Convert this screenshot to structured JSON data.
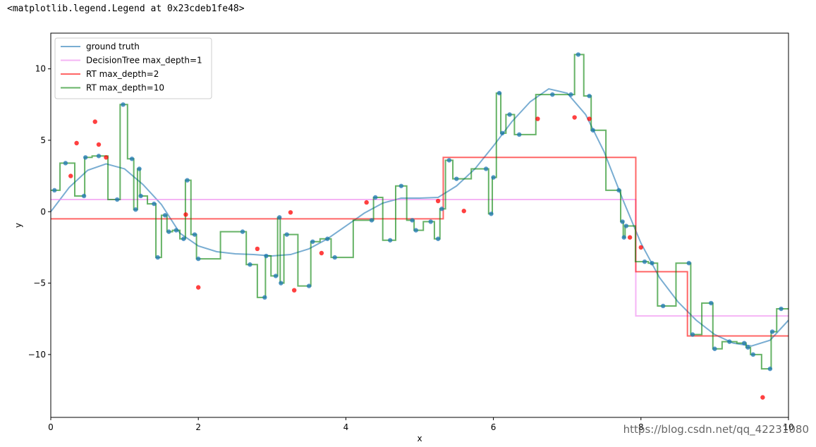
{
  "output_text": "<matplotlib.legend.Legend at 0x23cdeb1fe48>",
  "watermark": "https://blog.csdn.net/qq_42231080",
  "chart_data": {
    "type": "line",
    "xlabel": "x",
    "ylabel": "y",
    "xlim": [
      0,
      10
    ],
    "ylim": [
      -14.4,
      12.5
    ],
    "xticks": [
      0,
      2,
      4,
      6,
      8,
      10
    ],
    "yticks": [
      {
        "value": -10,
        "label": "−10"
      },
      {
        "value": -5,
        "label": "−5"
      },
      0,
      5,
      10
    ],
    "legend": "upper left",
    "series": [
      {
        "name": "ground truth",
        "color": "#1f77b4",
        "drawstyle": "default",
        "x": [
          0,
          0.25,
          0.5,
          0.75,
          1,
          1.25,
          1.5,
          1.75,
          2,
          2.25,
          2.5,
          2.75,
          3,
          3.25,
          3.5,
          3.75,
          4,
          4.25,
          4.5,
          4.75,
          5,
          5.25,
          5.5,
          5.75,
          6,
          6.25,
          6.5,
          6.75,
          7,
          7.25,
          7.5,
          7.75,
          8,
          8.25,
          8.5,
          8.75,
          9,
          9.25,
          9.5,
          9.75,
          10
        ],
        "values": [
          0,
          1.7,
          2.9,
          3.35,
          3,
          1.9,
          0.5,
          -1.5,
          -2.4,
          -2.8,
          -2.95,
          -3,
          -3.1,
          -3,
          -2.6,
          -1.9,
          -1,
          -0.1,
          0.6,
          0.95,
          0.95,
          1,
          1.8,
          3,
          4.6,
          6.3,
          7.7,
          8.6,
          8.3,
          6.8,
          4.2,
          0.9,
          -2.2,
          -4.6,
          -6.3,
          -7.6,
          -8.6,
          -9.2,
          -9.4,
          -9,
          -7.6
        ]
      },
      {
        "name": "DecisionTree max_depth=1",
        "color": "#ee82ee",
        "drawstyle": "steps-post",
        "x": [
          0,
          7.93,
          10
        ],
        "values": [
          0.85,
          -7.3,
          -7.3
        ]
      },
      {
        "name": "RT max_depth=2",
        "color": "#ff0000",
        "drawstyle": "steps-post",
        "x": [
          0,
          5.32,
          7.93,
          8.63,
          10
        ],
        "values": [
          -0.5,
          3.8,
          -4.2,
          -8.7,
          -8.7
        ]
      },
      {
        "name": "RT max_depth=10",
        "color": "#008000",
        "drawstyle": "steps-mid",
        "x": [
          0.05,
          0.2,
          0.45,
          0.47,
          0.65,
          0.9,
          0.98,
          1.1,
          1.15,
          1.2,
          1.22,
          1.4,
          1.45,
          1.55,
          1.6,
          1.7,
          1.8,
          1.85,
          1.95,
          2.0,
          2.6,
          2.7,
          2.9,
          2.92,
          3.05,
          3.1,
          3.12,
          3.2,
          3.5,
          3.55,
          3.75,
          3.85,
          4.35,
          4.4,
          4.6,
          4.75,
          4.9,
          4.95,
          5.15,
          5.25,
          5.3,
          5.4,
          5.5,
          5.9,
          5.97,
          6.0,
          6.08,
          6.12,
          6.22,
          6.35,
          6.8,
          7.05,
          7.15,
          7.3,
          7.35,
          7.7,
          7.75,
          7.77,
          7.8,
          8.05,
          8.15,
          8.3,
          8.65,
          8.7,
          8.95,
          9.0,
          9.2,
          9.4,
          9.45,
          9.52,
          9.75,
          9.78,
          9.9
        ],
        "values": [
          1.5,
          3.4,
          1.1,
          3.8,
          3.9,
          0.85,
          7.5,
          3.7,
          0.15,
          3.0,
          1.1,
          0.55,
          -3.2,
          -0.25,
          -1.4,
          -1.3,
          -1.9,
          2.2,
          -1.6,
          -3.3,
          -1.4,
          -3.7,
          -6.0,
          -3.1,
          -4.5,
          -0.4,
          -5.0,
          -1.6,
          -5.2,
          -2.1,
          -1.9,
          -3.2,
          -0.6,
          1.0,
          -2.0,
          1.8,
          -0.6,
          -1.3,
          -0.7,
          -1.9,
          0.2,
          3.6,
          2.3,
          3.0,
          -0.15,
          2.4,
          8.3,
          5.5,
          6.8,
          5.4,
          8.2,
          8.2,
          11.0,
          8.1,
          5.7,
          1.5,
          -0.7,
          -1.8,
          -1.0,
          -3.5,
          -3.6,
          -6.6,
          -3.6,
          -8.6,
          -6.4,
          -9.6,
          -9.1,
          -9.2,
          -9.5,
          -10.0,
          -11.0,
          -8.4,
          -6.8
        ]
      }
    ],
    "points": [
      {
        "color": "#1f77b4",
        "x": [
          0.05,
          0.2,
          0.45,
          0.47,
          0.65,
          0.9,
          0.98,
          1.1,
          1.15,
          1.2,
          1.22,
          1.4,
          1.45,
          1.55,
          1.6,
          1.7,
          1.8,
          1.85,
          1.95,
          2.0,
          2.6,
          2.7,
          2.9,
          2.92,
          3.05,
          3.1,
          3.12,
          3.2,
          3.5,
          3.55,
          3.75,
          3.85,
          4.35,
          4.4,
          4.6,
          4.75,
          4.9,
          4.95,
          5.15,
          5.25,
          5.3,
          5.4,
          5.5,
          5.9,
          5.97,
          6.0,
          6.08,
          6.12,
          6.22,
          6.35,
          6.8,
          7.05,
          7.15,
          7.3,
          7.35,
          7.7,
          7.75,
          7.77,
          7.8,
          8.05,
          8.15,
          8.3,
          8.65,
          8.7,
          8.95,
          9.0,
          9.2,
          9.4,
          9.45,
          9.52,
          9.75,
          9.78,
          9.9
        ],
        "values": [
          1.5,
          3.4,
          1.1,
          3.8,
          3.9,
          0.85,
          7.5,
          3.7,
          0.15,
          3.0,
          1.1,
          0.55,
          -3.2,
          -0.25,
          -1.4,
          -1.3,
          -1.9,
          2.2,
          -1.6,
          -3.3,
          -1.4,
          -3.7,
          -6.0,
          -3.1,
          -4.5,
          -0.4,
          -5.0,
          -1.6,
          -5.2,
          -2.1,
          -1.9,
          -3.2,
          -0.6,
          1.0,
          -2.0,
          1.8,
          -0.6,
          -1.3,
          -0.7,
          -1.9,
          0.2,
          3.6,
          2.3,
          3.0,
          -0.15,
          2.4,
          8.3,
          5.5,
          6.8,
          5.4,
          8.2,
          8.2,
          11.0,
          8.1,
          5.7,
          1.5,
          -0.7,
          -1.8,
          -1.0,
          -3.5,
          -3.6,
          -6.6,
          -3.6,
          -8.6,
          -6.4,
          -9.6,
          -9.1,
          -9.2,
          -9.5,
          -10.0,
          -11.0,
          -8.4,
          -6.8
        ]
      },
      {
        "color": "#ff0000",
        "x": [
          0.27,
          0.35,
          0.6,
          0.65,
          0.75,
          1.83,
          2.0,
          2.8,
          3.25,
          3.3,
          3.67,
          4.28,
          5.25,
          5.6,
          6.6,
          7.1,
          7.3,
          7.85,
          8.0,
          9.65
        ],
        "values": [
          2.5,
          4.8,
          6.3,
          4.7,
          3.8,
          -0.2,
          -5.3,
          -2.6,
          -0.05,
          -5.5,
          -2.9,
          0.65,
          0.75,
          0.05,
          6.5,
          6.6,
          6.5,
          -1.8,
          -2.5,
          -13.0
        ]
      }
    ]
  }
}
